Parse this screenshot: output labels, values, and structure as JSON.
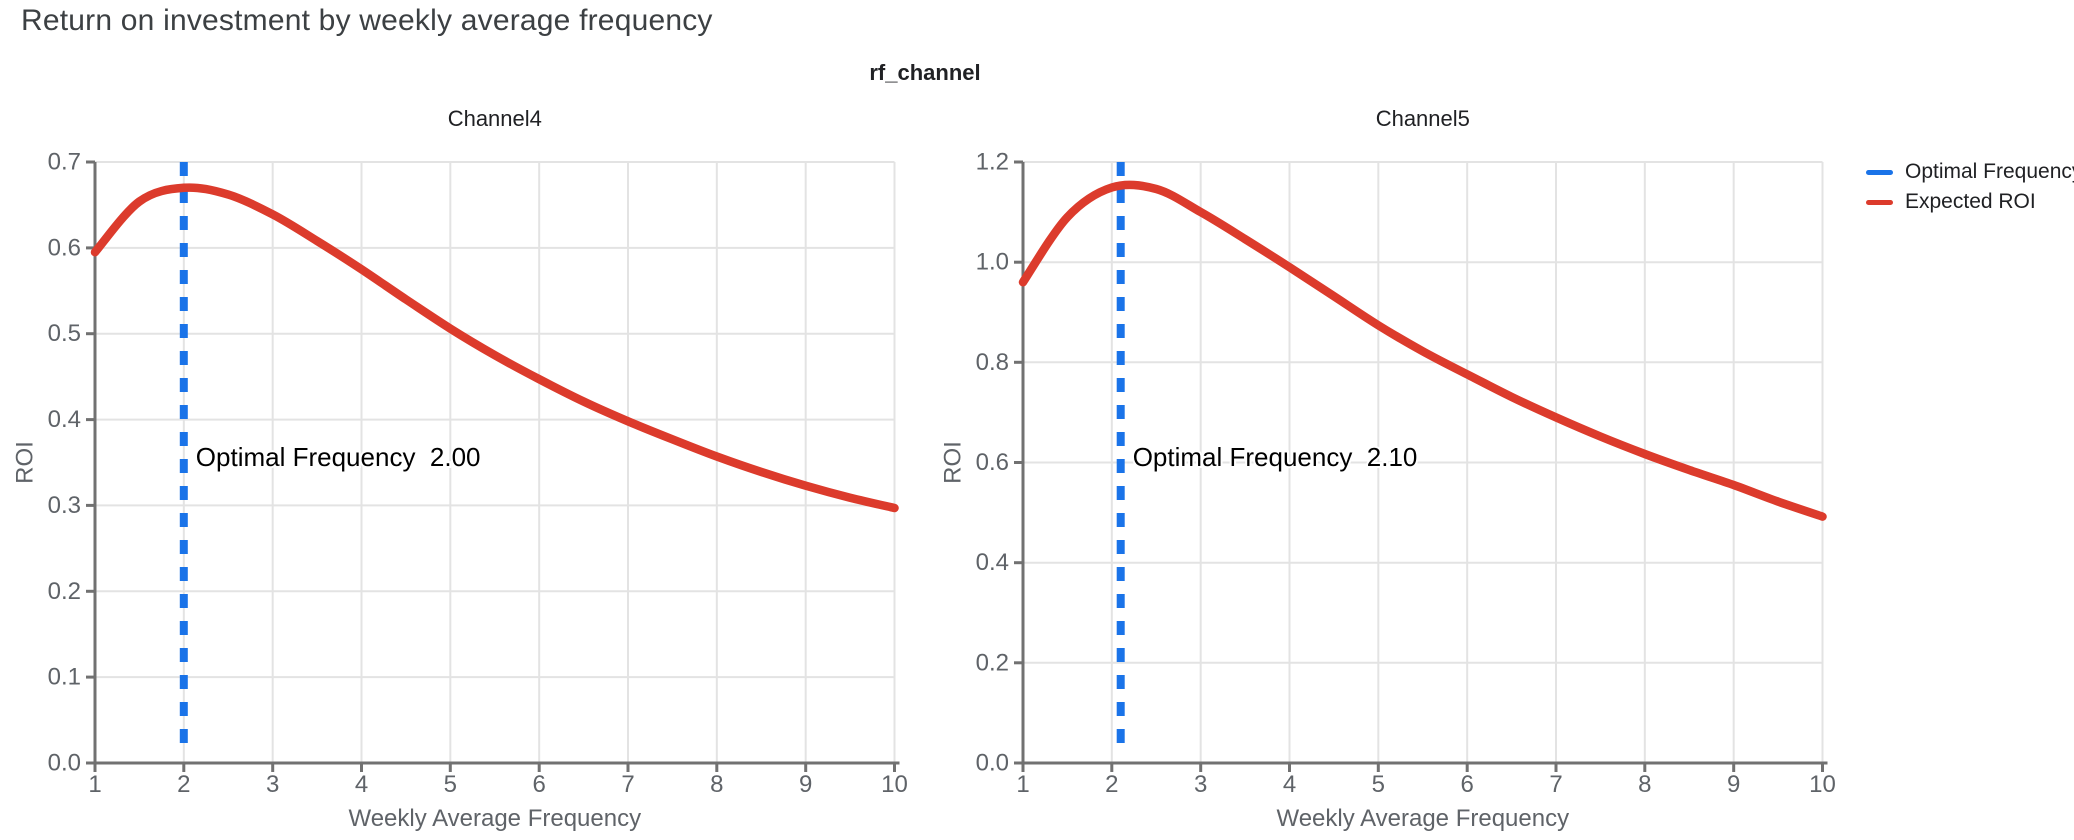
{
  "page_title": "Return on investment by weekly average frequency",
  "facet_title": "rf_channel",
  "legend": {
    "items": [
      {
        "label": "Optimal Frequency",
        "color": "#1a73e8"
      },
      {
        "label": "Expected ROI",
        "color": "#dc3b2c"
      }
    ]
  },
  "colors": {
    "optimal_frequency": "#1a73e8",
    "expected_roi": "#dc3b2c",
    "gridline": "#e3e3e3",
    "axis": "#717171",
    "tick_label": "#5f6368",
    "axis_title": "#5f6368",
    "channel_title": "#202124",
    "annotation": "#000000"
  },
  "chart_data": [
    {
      "type": "line",
      "title": "Channel4",
      "xlabel": "Weekly Average Frequency",
      "ylabel": "ROI",
      "xlim": [
        1,
        10
      ],
      "ylim": [
        0,
        0.7
      ],
      "xticks": [
        1,
        2,
        3,
        4,
        5,
        6,
        7,
        8,
        9,
        10
      ],
      "xtick_labels": [
        "1",
        "2",
        "3",
        "4",
        "5",
        "6",
        "7",
        "8",
        "9",
        "10"
      ],
      "yticks": [
        0,
        0.1,
        0.2,
        0.3,
        0.4,
        0.5,
        0.6,
        0.7
      ],
      "ytick_labels": [
        "0.0",
        "0.1",
        "0.2",
        "0.3",
        "0.4",
        "0.5",
        "0.6",
        "0.7"
      ],
      "optimal_frequency": 2.0,
      "annotation_text": "Optimal Frequency  2.00",
      "series": [
        {
          "name": "Expected ROI",
          "x": [
            1,
            1.5,
            2,
            2.5,
            3,
            3.5,
            4,
            4.5,
            5,
            5.5,
            6,
            6.5,
            7,
            7.5,
            8,
            8.5,
            9,
            9.5,
            10
          ],
          "y": [
            0.595,
            0.654,
            0.67,
            0.662,
            0.639,
            0.608,
            0.575,
            0.54,
            0.506,
            0.475,
            0.447,
            0.421,
            0.398,
            0.377,
            0.357,
            0.339,
            0.323,
            0.309,
            0.297
          ]
        }
      ]
    },
    {
      "type": "line",
      "title": "Channel5",
      "xlabel": "Weekly Average Frequency",
      "ylabel": "ROI",
      "xlim": [
        1,
        10
      ],
      "ylim": [
        0,
        1.2
      ],
      "xticks": [
        1,
        2,
        3,
        4,
        5,
        6,
        7,
        8,
        9,
        10
      ],
      "xtick_labels": [
        "1",
        "2",
        "3",
        "4",
        "5",
        "6",
        "7",
        "8",
        "9",
        "10"
      ],
      "yticks": [
        0,
        0.2,
        0.4,
        0.6,
        0.8,
        1.0,
        1.2
      ],
      "ytick_labels": [
        "0.0",
        "0.2",
        "0.4",
        "0.6",
        "0.8",
        "1.0",
        "1.2"
      ],
      "optimal_frequency": 2.1,
      "annotation_text": "Optimal Frequency  2.10",
      "series": [
        {
          "name": "Expected ROI",
          "x": [
            1,
            1.5,
            2,
            2.5,
            3,
            3.5,
            4,
            4.5,
            5,
            5.5,
            6,
            6.5,
            7,
            7.5,
            8,
            8.5,
            9,
            9.5,
            10
          ],
          "y": [
            0.96,
            1.09,
            1.149,
            1.146,
            1.1,
            1.046,
            0.99,
            0.932,
            0.874,
            0.822,
            0.776,
            0.731,
            0.69,
            0.652,
            0.617,
            0.585,
            0.555,
            0.522,
            0.492
          ]
        }
      ]
    }
  ]
}
